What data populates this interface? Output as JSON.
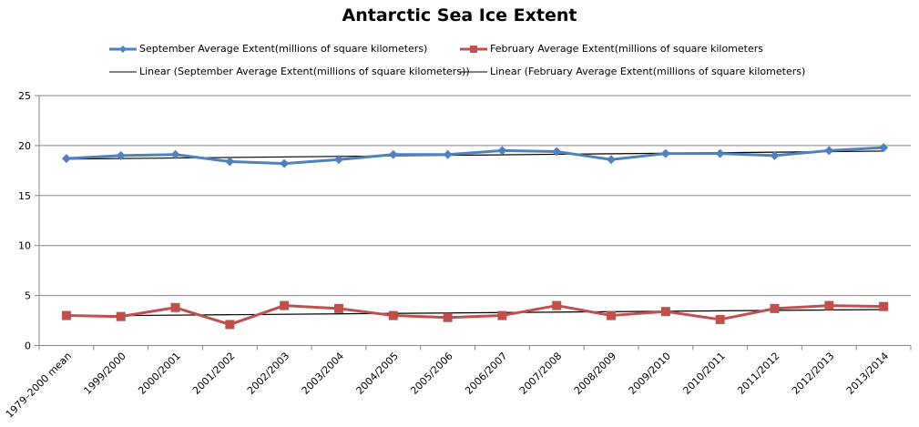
{
  "chart_data": {
    "type": "line",
    "title": "Antarctic Sea Ice Extent",
    "xlabel": "",
    "ylabel": "",
    "ylim": [
      0,
      25
    ],
    "yticks": [
      0,
      5,
      10,
      15,
      20,
      25
    ],
    "grid": true,
    "legend_position": "top",
    "categories": [
      "1979–2000 mean",
      "1999/2000",
      "2000/2001",
      "2001/2002",
      "2002/2003",
      "2003/2004",
      "2004/2005",
      "2005/2006",
      "2006/2007",
      "2007/2008",
      "2008/2009",
      "2009/2010",
      "2010/2011",
      "2011/2012",
      "2012/2013",
      "2013/2014"
    ],
    "series": [
      {
        "name": "September Average Extent(millions of square kilometers)",
        "color": "#4F81BD",
        "marker": "diamond",
        "values": [
          18.7,
          19.0,
          19.1,
          18.4,
          18.2,
          18.6,
          19.1,
          19.1,
          19.5,
          19.4,
          18.6,
          19.2,
          19.2,
          19.0,
          19.5,
          19.8
        ]
      },
      {
        "name": "February Average Extent(millions of square kilometers",
        "color": "#C0504D",
        "marker": "square",
        "values": [
          3.0,
          2.9,
          3.8,
          2.1,
          4.0,
          3.7,
          3.0,
          2.8,
          3.0,
          4.0,
          3.0,
          3.4,
          2.6,
          3.7,
          4.0,
          3.9
        ]
      }
    ],
    "trendlines": [
      {
        "name": "Linear (September Average Extent(millions of square kilometers))",
        "color": "#000000",
        "type": "linear",
        "start": 18.65,
        "end": 19.45
      },
      {
        "name": "Linear (February Average Extent(millions of square kilometers)",
        "color": "#000000",
        "type": "linear",
        "start": 2.95,
        "end": 3.6
      }
    ]
  }
}
